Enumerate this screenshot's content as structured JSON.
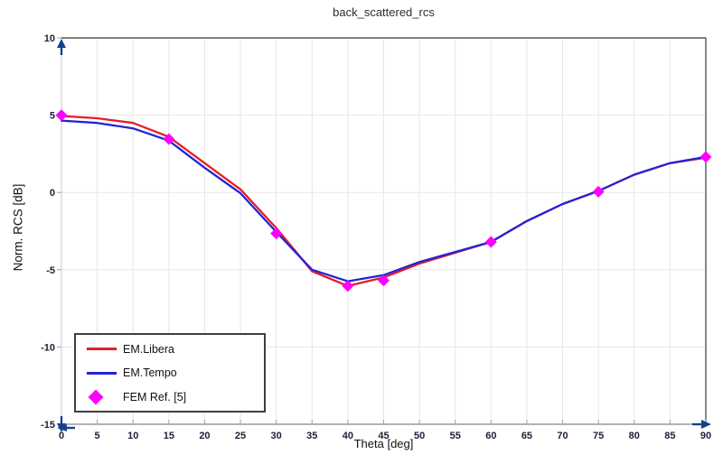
{
  "chart_data": {
    "type": "line",
    "title": "back_scattered_rcs",
    "xlabel": "Theta [deg]",
    "ylabel": "Norm. RCS [dB]",
    "xlim": [
      0,
      90
    ],
    "ylim": [
      -15,
      10
    ],
    "xticks": [
      0,
      5,
      10,
      15,
      20,
      25,
      30,
      35,
      40,
      45,
      50,
      55,
      60,
      65,
      70,
      75,
      80,
      85,
      90
    ],
    "yticks": [
      -15,
      -10,
      -5,
      0,
      5,
      10
    ],
    "grid": true,
    "legend_position": "lower-left",
    "x": [
      0,
      5,
      10,
      15,
      20,
      25,
      30,
      35,
      40,
      45,
      50,
      55,
      60,
      65,
      70,
      75,
      80,
      85,
      90
    ],
    "series": [
      {
        "name": "EM.Libera",
        "type": "line",
        "color": "#e61e28",
        "values": [
          4.95,
          4.8,
          4.5,
          3.6,
          1.9,
          0.2,
          -2.3,
          -5.1,
          -6.05,
          -5.5,
          -4.6,
          -3.9,
          -3.2,
          -1.85,
          -0.75,
          0.1,
          1.15,
          1.9,
          2.25
        ]
      },
      {
        "name": "EM.Tempo",
        "type": "line",
        "color": "#2323d7",
        "values": [
          4.65,
          4.5,
          4.15,
          3.35,
          1.6,
          -0.05,
          -2.55,
          -5.0,
          -5.75,
          -5.35,
          -4.5,
          -3.85,
          -3.2,
          -1.85,
          -0.75,
          0.1,
          1.15,
          1.9,
          2.3
        ]
      },
      {
        "name": "FEM Ref. [5]",
        "type": "scatter",
        "marker": "diamond",
        "color": "#ff00ff",
        "x": [
          0,
          15,
          30,
          40,
          45,
          60,
          75,
          90
        ],
        "values": [
          5.0,
          3.45,
          -2.65,
          -6.05,
          -5.7,
          -3.2,
          0.05,
          2.3
        ]
      }
    ],
    "style": {
      "grid_color": "#e7e7e7",
      "frame_dark_color": "#565656",
      "axis_bottom_color": "#9a9a9a",
      "axis_left_color": "#c9c9c9",
      "tick_color": "#7fb2b2",
      "arrow_color": "#15418c"
    }
  }
}
